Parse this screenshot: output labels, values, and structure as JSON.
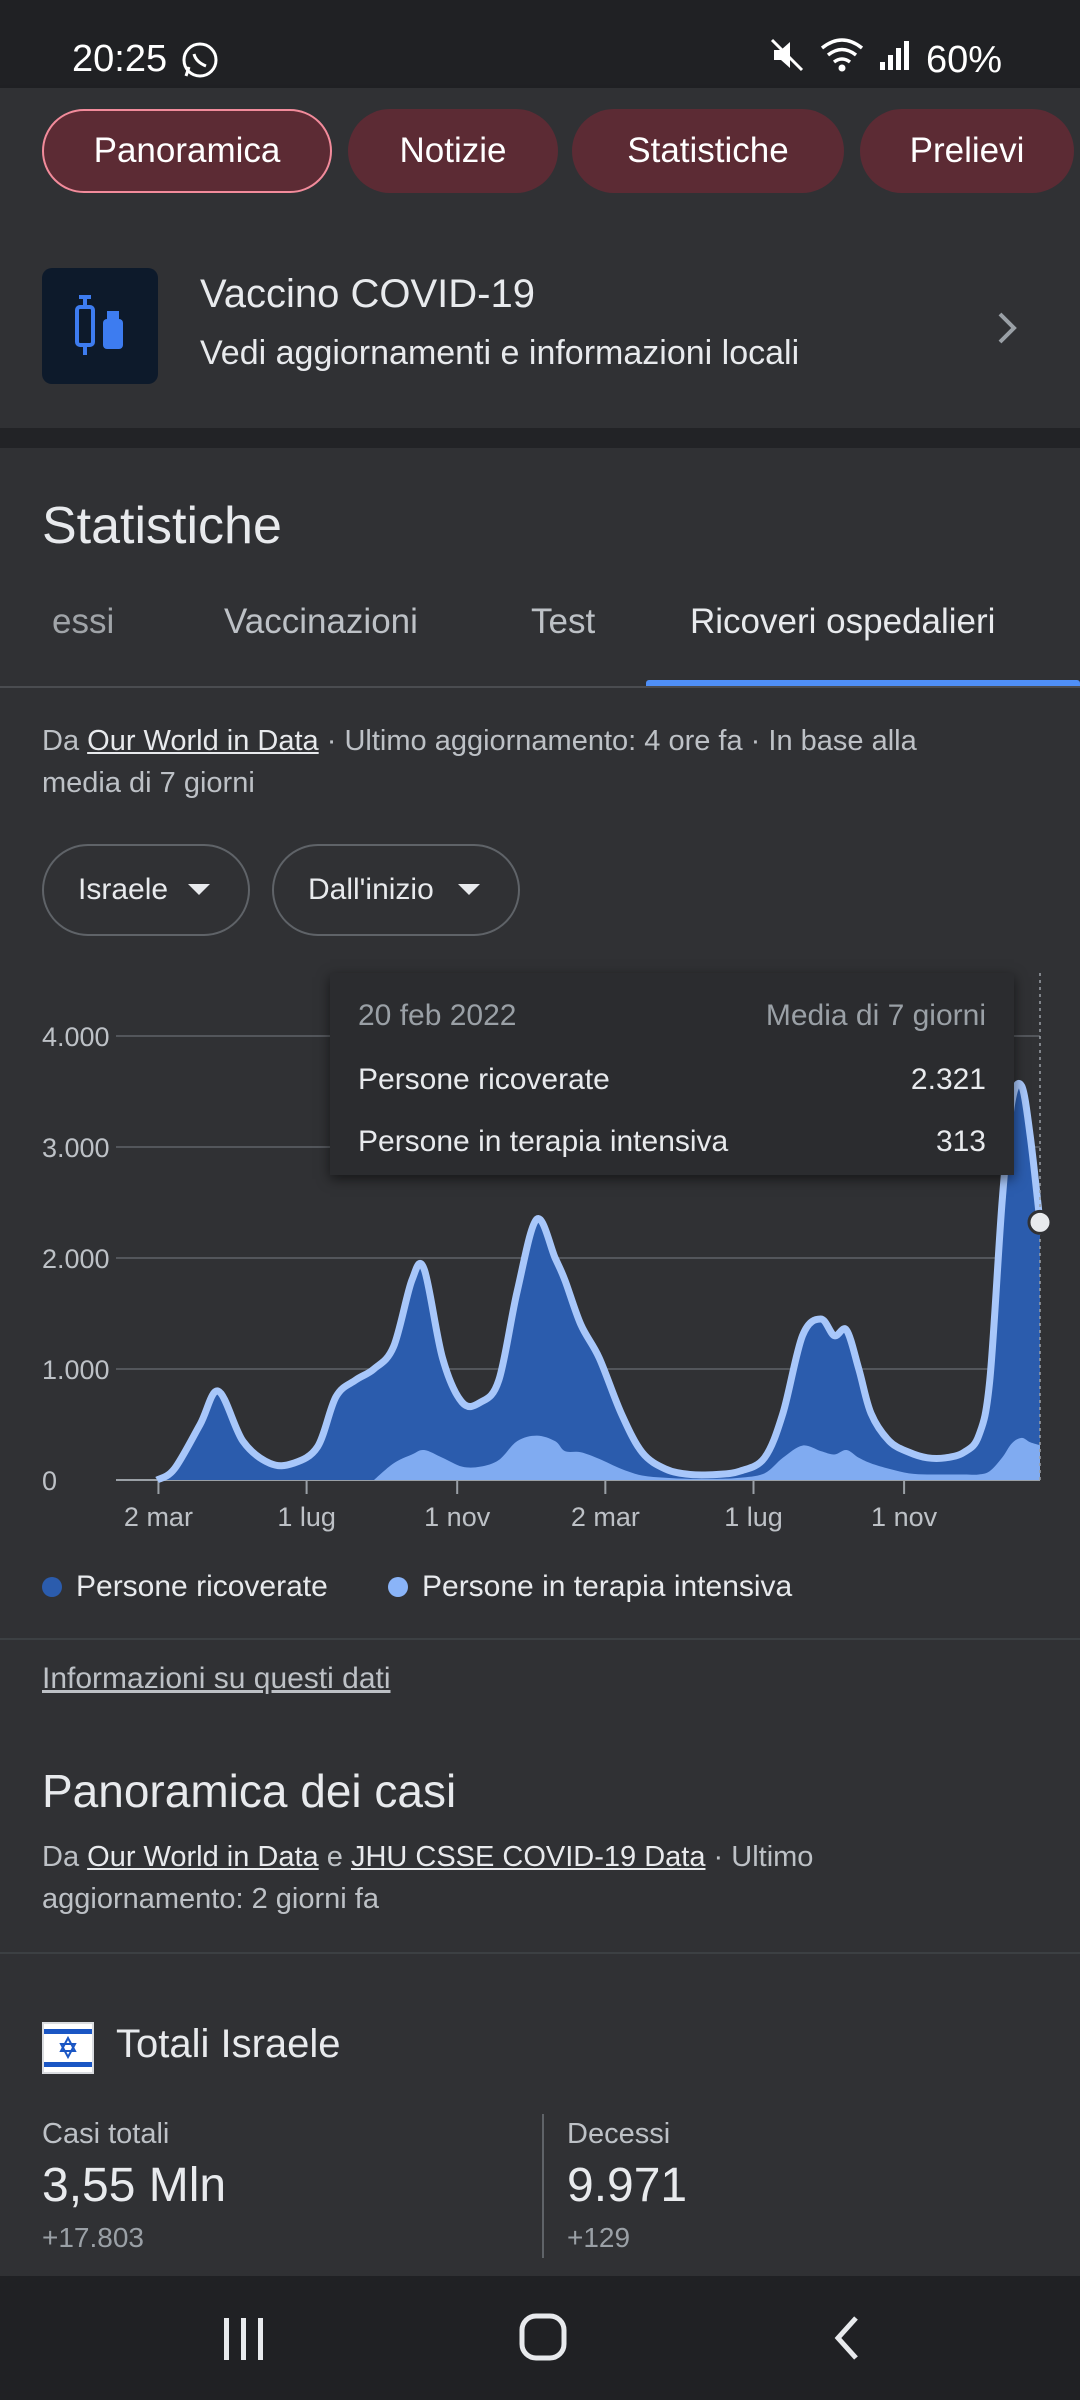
{
  "status_bar": {
    "time": "20:25",
    "battery": "60%"
  },
  "chips": [
    {
      "label": "Panoramica",
      "active": true
    },
    {
      "label": "Notizie",
      "active": false
    },
    {
      "label": "Statistiche",
      "active": false
    },
    {
      "label": "Prelievi",
      "active": false
    }
  ],
  "vaccine": {
    "title": "Vaccino COVID-19",
    "subtitle": "Vedi aggiornamenti e informazioni locali"
  },
  "stats": {
    "title": "Statistiche",
    "tabs": [
      "essi",
      "Vaccinazioni",
      "Test",
      "Ricoveri ospedalieri"
    ],
    "selected_tab": "Ricoveri ospedalieri",
    "source": {
      "prefix": "Da ",
      "link": "Our World in Data",
      "line1_rest": " · Ultimo aggiornamento: 4 ore fa · In base alla",
      "line2": "media di 7 giorni"
    },
    "dropdowns": {
      "country": "Israele",
      "range": "Dall'inizio"
    }
  },
  "tooltip": {
    "date": "20 feb 2022",
    "label": "Media di 7 giorni",
    "rows": [
      {
        "name": "Persone ricoverate",
        "value": "2.321"
      },
      {
        "name": "Persone in terapia intensiva",
        "value": "313"
      }
    ]
  },
  "legend": [
    "Persone ricoverate",
    "Persone in terapia intensiva"
  ],
  "colors": {
    "hospitalized": "#2b5cad",
    "hospitalized_line": "#a8c7fa",
    "icu": "#8ab4f8",
    "chip_bg": "#5c2b34",
    "chip_border": "#f28b9b",
    "tab_indicator": "#4f8ff7"
  },
  "chart_data": {
    "type": "area",
    "x_ticks": [
      "2 mar",
      "1 lug",
      "1 nov",
      "2 mar",
      "1 lug",
      "1 nov"
    ],
    "y_ticks": [
      "0",
      "1.000",
      "2.000",
      "3.000",
      "4.000"
    ],
    "ylim": [
      0,
      4500
    ],
    "x": [
      "2020-03-01",
      "2020-03-15",
      "2020-04-05",
      "2020-04-20",
      "2020-05-10",
      "2020-06-01",
      "2020-06-20",
      "2020-07-10",
      "2020-07-25",
      "2020-08-10",
      "2020-08-25",
      "2020-09-10",
      "2020-09-25",
      "2020-10-05",
      "2020-10-20",
      "2020-11-05",
      "2020-11-20",
      "2020-12-05",
      "2020-12-20",
      "2021-01-05",
      "2021-01-20",
      "2021-01-28",
      "2021-02-10",
      "2021-02-25",
      "2021-03-15",
      "2021-04-01",
      "2021-04-20",
      "2021-05-10",
      "2021-06-01",
      "2021-06-20",
      "2021-07-10",
      "2021-07-25",
      "2021-08-10",
      "2021-08-25",
      "2021-09-05",
      "2021-09-15",
      "2021-09-25",
      "2021-10-05",
      "2021-10-20",
      "2021-11-05",
      "2021-11-20",
      "2021-12-05",
      "2021-12-20",
      "2022-01-01",
      "2022-01-10",
      "2022-01-20",
      "2022-01-28",
      "2022-02-05",
      "2022-02-12",
      "2022-02-20"
    ],
    "series": [
      {
        "name": "Persone ricoverate",
        "values": [
          0,
          100,
          500,
          800,
          350,
          150,
          150,
          300,
          750,
          900,
          1000,
          1200,
          1800,
          1900,
          1100,
          700,
          700,
          900,
          1700,
          2350,
          2000,
          1800,
          1400,
          1100,
          600,
          250,
          100,
          50,
          50,
          80,
          200,
          600,
          1300,
          1450,
          1300,
          1350,
          1000,
          600,
          350,
          250,
          200,
          200,
          250,
          400,
          900,
          2500,
          3400,
          3550,
          3100,
          2321
        ]
      },
      {
        "name": "Persone in terapia intensiva",
        "values": [
          0,
          0,
          0,
          0,
          0,
          0,
          0,
          0,
          0,
          0,
          0,
          150,
          230,
          270,
          200,
          120,
          120,
          180,
          350,
          400,
          350,
          260,
          250,
          190,
          100,
          40,
          20,
          10,
          10,
          20,
          60,
          200,
          310,
          260,
          230,
          270,
          200,
          150,
          100,
          60,
          50,
          50,
          50,
          50,
          80,
          200,
          330,
          380,
          340,
          313
        ]
      }
    ]
  },
  "info_link": "Informazioni su questi dati",
  "cases": {
    "title": "Panoramica dei casi",
    "src_prefix": "Da ",
    "link1": "Our World in Data",
    "and": " e ",
    "link2": "JHU CSSE COVID-19 Data",
    "rest1": " · Ultimo",
    "line2": "aggiornamento: 2 giorni fa"
  },
  "totals": {
    "title": "Totali Israele",
    "cases_label": "Casi totali",
    "cases_value": "3,55 Mln",
    "cases_delta": "+17.803",
    "deaths_label": "Decessi",
    "deaths_value": "9.971",
    "deaths_delta": "+129"
  }
}
